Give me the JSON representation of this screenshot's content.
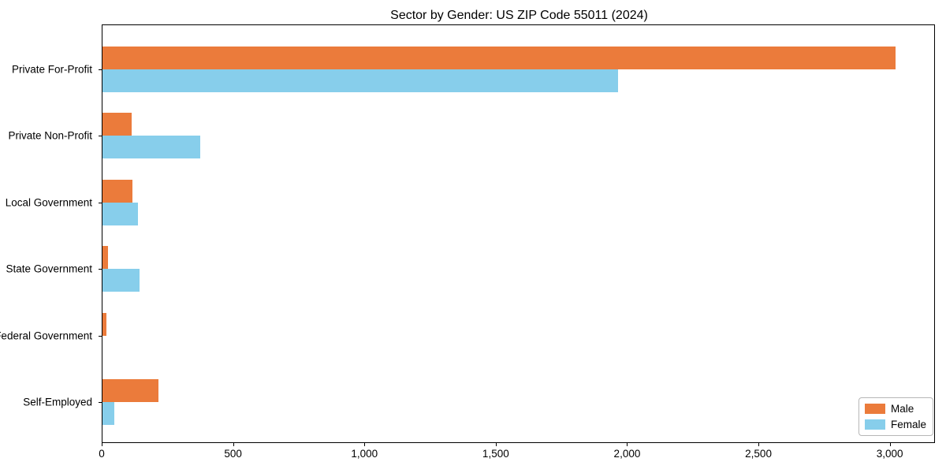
{
  "chart_data": {
    "type": "bar",
    "orientation": "horizontal",
    "title": "Sector by Gender: US ZIP Code 55011 (2024)",
    "categories": [
      "Private For-Profit",
      "Private Non-Profit",
      "Local Government",
      "State Government",
      "Federal Government",
      "Self-Employed"
    ],
    "series": [
      {
        "name": "Male",
        "color": "#EB7B3B",
        "values": [
          3020,
          112,
          115,
          22,
          16,
          212
        ]
      },
      {
        "name": "Female",
        "color": "#87CEEB",
        "values": [
          1962,
          371,
          134,
          142,
          0,
          44
        ]
      }
    ],
    "xlabel": "",
    "ylabel": "",
    "xlim": [
      0,
      3172
    ],
    "xticks": [
      0,
      500,
      1000,
      1500,
      2000,
      2500,
      3000
    ],
    "xtick_labels": [
      "0",
      "500",
      "1,000",
      "1,500",
      "2,000",
      "2,500",
      "3,000"
    ],
    "legend_position": "lower-right",
    "grid": false,
    "background_color": "#FFFFFF",
    "spine_color": "#000000"
  }
}
